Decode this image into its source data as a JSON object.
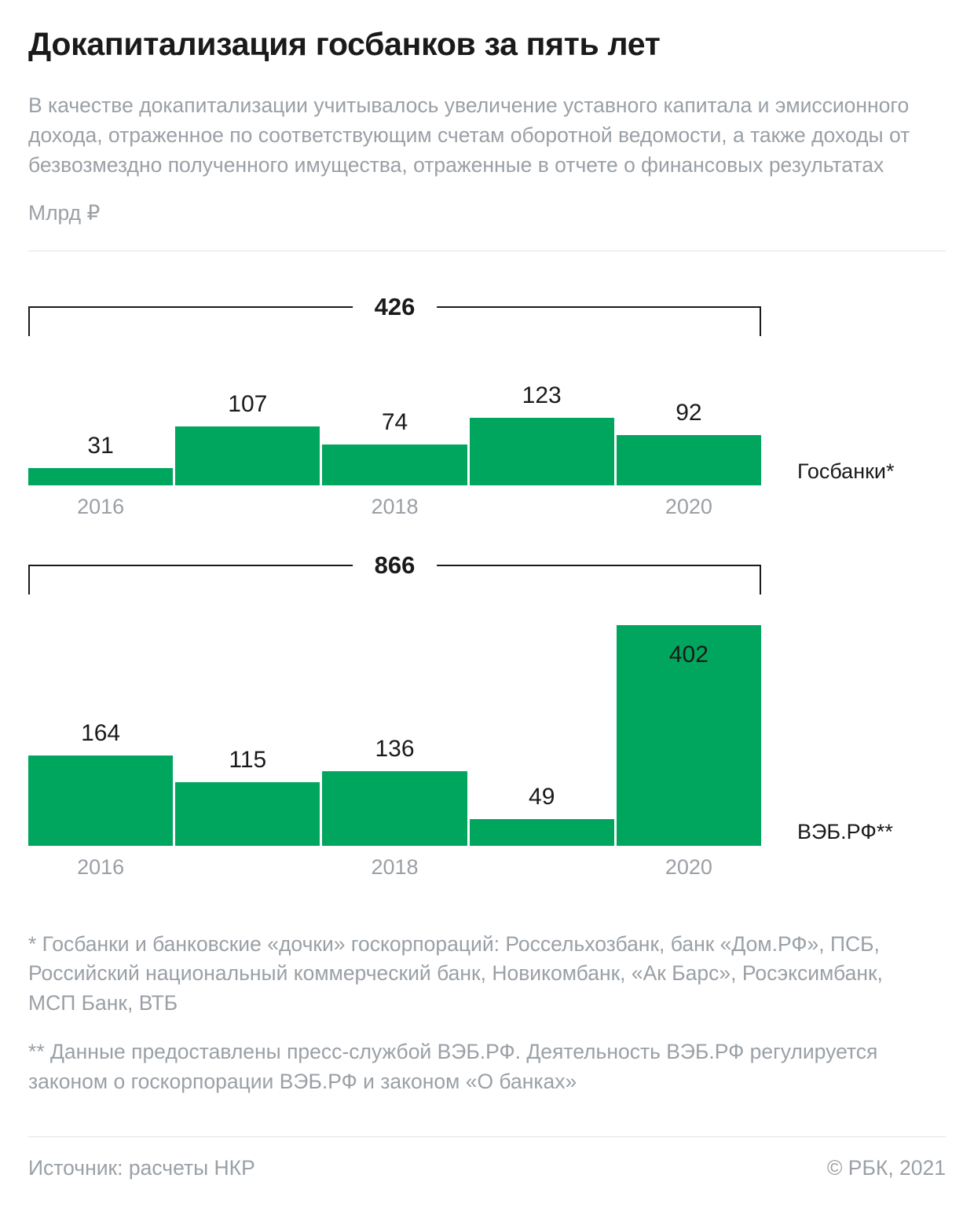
{
  "title": "Докапитализация госбанков за пять лет",
  "subtitle": "В качестве докапитализации учитывалось увеличение уставного капитала и эмиссионного дохода, отраженное по соответствующим счетам оборотной ведомости, а также доходы от безвозмездно полученного имущества, отраженные в отчете о финансовых результатах",
  "unit": "Млрд ₽",
  "colors": {
    "bar": "#00a65d",
    "text_dark": "#1a1a1a",
    "text_muted": "#9aa0a6",
    "divider": "#e1e3e5"
  },
  "chart_data": [
    {
      "type": "bar",
      "name": "gosbanki",
      "series_label": "Госбанки*",
      "total": 426,
      "categories": [
        "2016",
        "2017",
        "2018",
        "2019",
        "2020"
      ],
      "x_tick_labels": [
        "2016",
        "",
        "2018",
        "",
        "2020"
      ],
      "values": [
        31,
        107,
        74,
        123,
        92
      ],
      "ylabel": "Млрд ₽",
      "legend_position": "right-of-baseline",
      "grid": false
    },
    {
      "type": "bar",
      "name": "veb-rf",
      "series_label": "ВЭБ.РФ**",
      "total": 866,
      "categories": [
        "2016",
        "2017",
        "2018",
        "2019",
        "2020"
      ],
      "x_tick_labels": [
        "2016",
        "",
        "2018",
        "",
        "2020"
      ],
      "values": [
        164,
        115,
        136,
        49,
        402
      ],
      "ylabel": "Млрд ₽",
      "legend_position": "right-of-baseline",
      "grid": false
    }
  ],
  "footnotes": [
    "* Госбанки и банковские «дочки» госкорпораций: Россельхозбанк, банк «Дом.РФ», ПСБ, Российский национальный коммерческий банк, Новикомбанк, «Ак Барс», Росэксимбанк, МСП Банк, ВТБ",
    "** Данные предоставлены пресс-службой ВЭБ.РФ. Деятельность ВЭБ.РФ регулируется законом о госкорпорации ВЭБ.РФ и законом «О банках»"
  ],
  "footer": {
    "source": "Источник: расчеты НКР",
    "copyright": "© РБК, 2021"
  }
}
